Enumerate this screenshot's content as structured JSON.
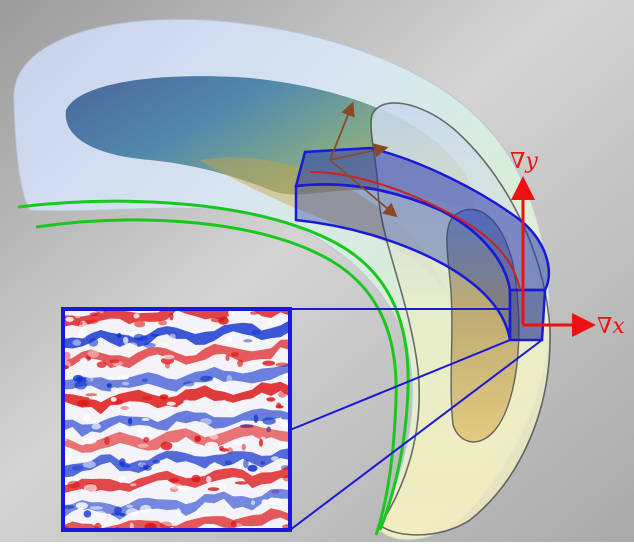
{
  "labels": {
    "grad_y": "∇y",
    "grad_x": "∇x"
  },
  "colors": {
    "background_light": "#ececec",
    "background_dark": "#9c9c9c",
    "flux_tube": "#1a1ad6",
    "field_line": "#19c81e",
    "gradient_arrow": "#ee1111",
    "magnetic_axis": "#cc2222",
    "triad_arrow": "#8a4a2a",
    "turbulence_positive": "#dd1111",
    "turbulence_negative": "#1133cc"
  },
  "icons": {
    "grad_y_arrow": "arrow-up",
    "grad_x_arrow": "arrow-right"
  }
}
